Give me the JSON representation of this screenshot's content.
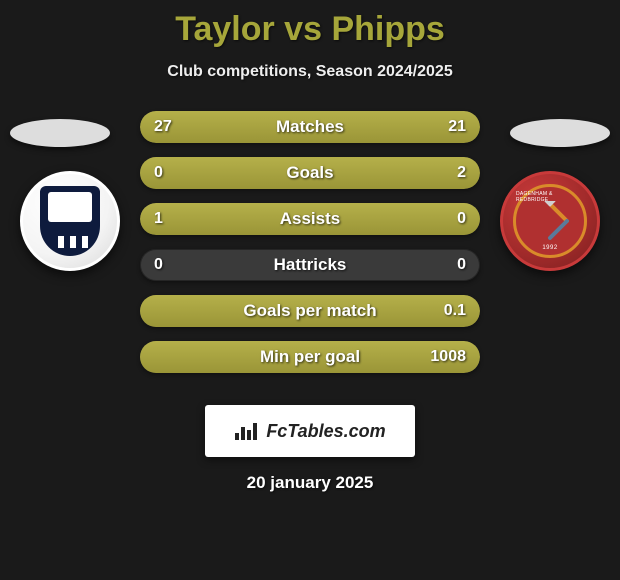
{
  "title": "Taylor vs Phipps",
  "subtitle": "Club competitions, Season 2024/2025",
  "colors": {
    "accent": "#a6a63a",
    "bar_fill": "#9a9537",
    "bar_bg": "#3a3a3a",
    "bg": "#1a1a1a",
    "crest_left_body": "#0e1b3d",
    "crest_right_body": "#b03030",
    "crest_right_border": "#d98b2a"
  },
  "bars": [
    {
      "label": "Matches",
      "left": "27",
      "right": "21",
      "left_pct": 56,
      "right_pct": 44
    },
    {
      "label": "Goals",
      "left": "0",
      "right": "2",
      "left_pct": 0,
      "right_pct": 100
    },
    {
      "label": "Assists",
      "left": "1",
      "right": "0",
      "left_pct": 100,
      "right_pct": 0
    },
    {
      "label": "Hattricks",
      "left": "0",
      "right": "0",
      "left_pct": 0,
      "right_pct": 0
    },
    {
      "label": "Goals per match",
      "left": "",
      "right": "0.1",
      "left_pct": 0,
      "right_pct": 100
    },
    {
      "label": "Min per goal",
      "left": "",
      "right": "1008",
      "left_pct": 0,
      "right_pct": 100
    }
  ],
  "crest_left": {
    "name": "southend-united-crest"
  },
  "crest_right": {
    "name": "dagenham-redbridge-crest",
    "year": "1992",
    "ring": "DAGENHAM & REDBRIDGE"
  },
  "footer": {
    "brand": "FcTables.com"
  },
  "date": "20 january 2025"
}
